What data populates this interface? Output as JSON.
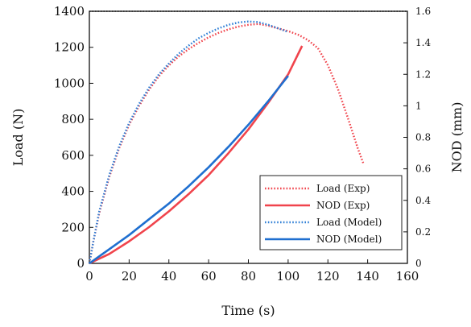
{
  "chart_data": {
    "type": "line",
    "xlabel": "Time (s)",
    "ylabel": "Load (N)",
    "y2label": "NOD (mm)",
    "xlim": [
      0,
      160
    ],
    "ylim": [
      0,
      1400
    ],
    "y2lim": [
      0,
      1.6
    ],
    "xticks": [
      0,
      20,
      40,
      60,
      80,
      100,
      120,
      140,
      160
    ],
    "yticks": [
      0,
      200,
      400,
      600,
      800,
      1000,
      1200,
      1400
    ],
    "y2ticks": [
      0,
      0.2,
      0.4,
      0.6,
      0.8,
      1,
      1.2,
      1.4,
      1.6
    ],
    "grid": false,
    "legend_position": "lower-right",
    "series": [
      {
        "name": "Load (Exp)",
        "axis": "left",
        "style": "dotted",
        "color": "#f0444c",
        "x": [
          0,
          2,
          5,
          10,
          15,
          20,
          25,
          30,
          35,
          40,
          45,
          50,
          55,
          60,
          65,
          70,
          75,
          80,
          85,
          90,
          95,
          100,
          105,
          110,
          115,
          120,
          125,
          130,
          135,
          138
        ],
        "y": [
          0,
          120,
          280,
          480,
          640,
          770,
          875,
          965,
          1040,
          1100,
          1150,
          1190,
          1225,
          1255,
          1280,
          1300,
          1315,
          1325,
          1330,
          1320,
          1305,
          1290,
          1270,
          1240,
          1195,
          1100,
          970,
          810,
          640,
          550
        ]
      },
      {
        "name": "NOD (Exp)",
        "axis": "right",
        "style": "solid",
        "color": "#f0444c",
        "x": [
          0,
          10,
          20,
          30,
          40,
          50,
          60,
          70,
          80,
          90,
          100,
          107
        ],
        "y": [
          0,
          0.06,
          0.14,
          0.23,
          0.33,
          0.44,
          0.56,
          0.7,
          0.85,
          1.02,
          1.2,
          1.38
        ]
      },
      {
        "name": "Load (Model)",
        "axis": "left",
        "style": "dotted",
        "color": "#2f7fd6",
        "x": [
          0,
          2,
          5,
          10,
          15,
          20,
          25,
          30,
          35,
          40,
          45,
          50,
          55,
          60,
          65,
          70,
          75,
          80,
          85,
          90,
          95,
          100
        ],
        "y": [
          0,
          120,
          290,
          490,
          650,
          780,
          885,
          975,
          1050,
          1110,
          1165,
          1210,
          1250,
          1280,
          1305,
          1325,
          1338,
          1343,
          1340,
          1325,
          1305,
          1285
        ]
      },
      {
        "name": "NOD (Model)",
        "axis": "right",
        "style": "solid",
        "color": "#1f6fd0",
        "x": [
          0,
          10,
          20,
          30,
          40,
          50,
          60,
          70,
          80,
          90,
          100
        ],
        "y": [
          0,
          0.09,
          0.18,
          0.28,
          0.38,
          0.49,
          0.61,
          0.74,
          0.88,
          1.03,
          1.19
        ]
      }
    ]
  }
}
